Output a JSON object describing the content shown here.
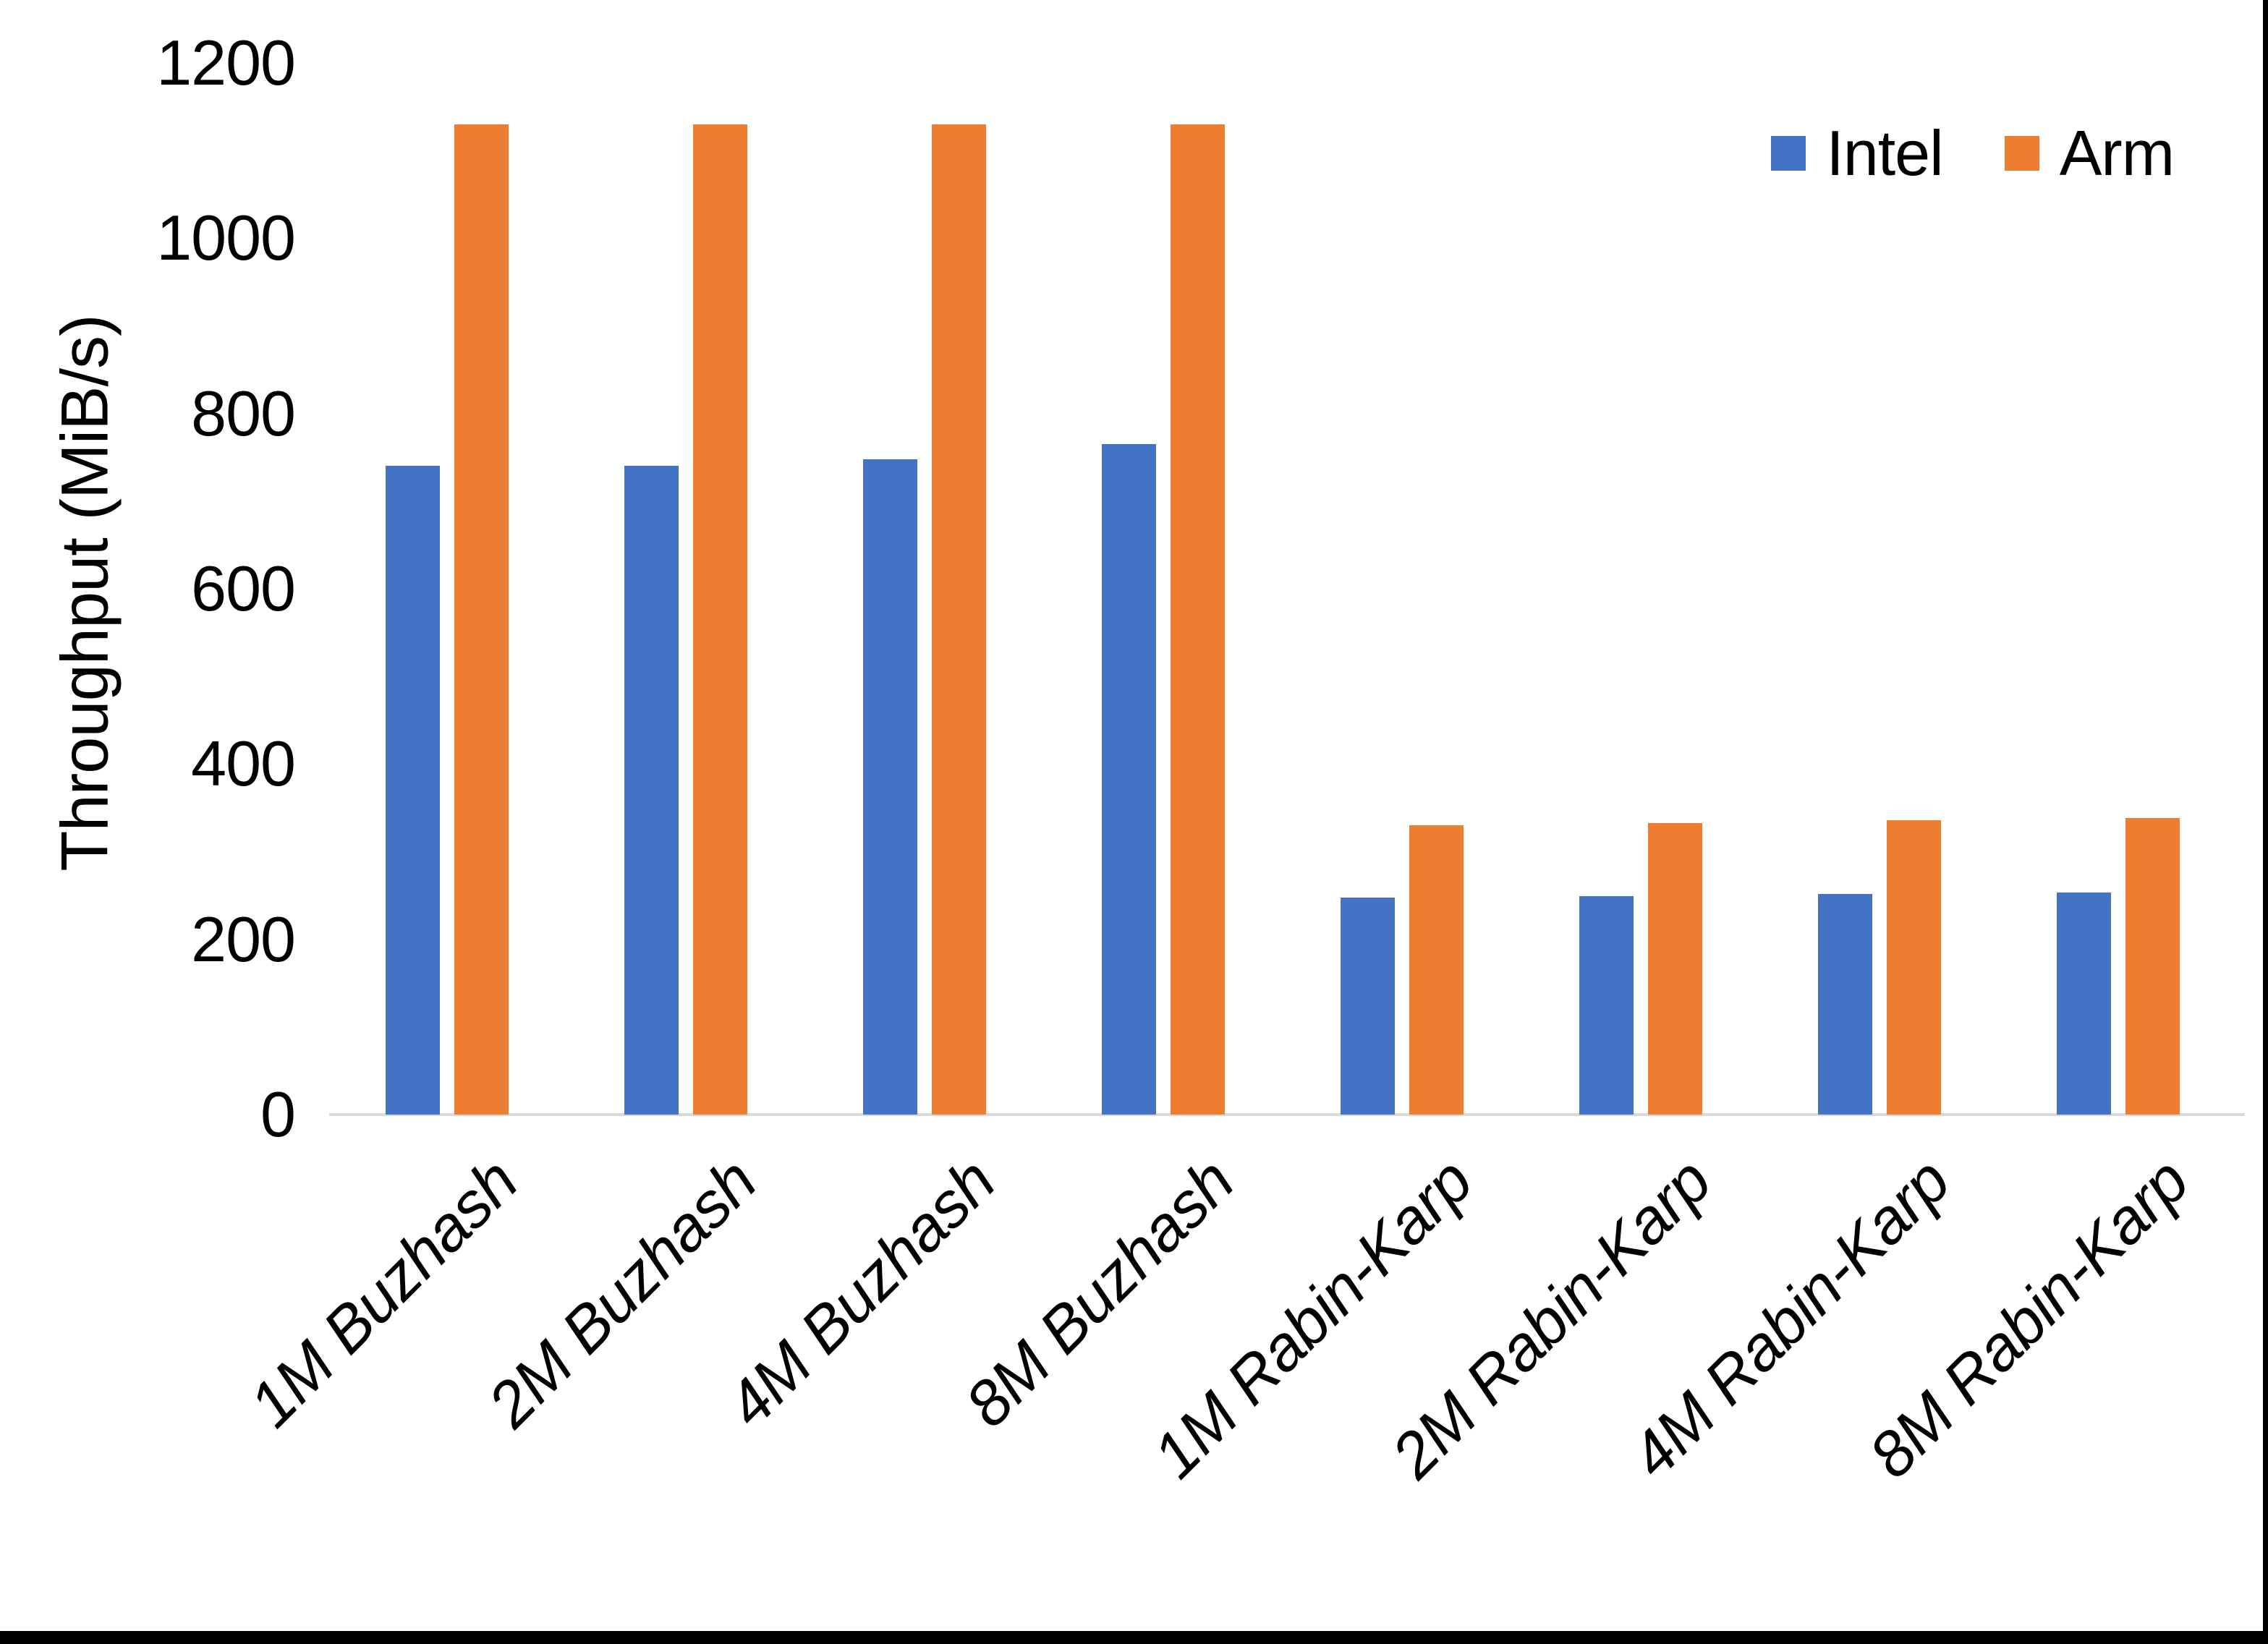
{
  "page": {
    "background_color": "#FFFFFF",
    "frame_color": "#000000"
  },
  "chart_data": {
    "type": "bar",
    "categories": [
      "1M Buzhash",
      "2M Buzhash",
      "4M Buzhash",
      "8M Buzhash",
      "1M Rabin-Karp",
      "2M Rabin-Karp",
      "4M Rabin-Karp",
      "8M Rabin-Karp"
    ],
    "series": [
      {
        "name": "Intel",
        "color": "#4472C4",
        "values": [
          740,
          740,
          748,
          765,
          248,
          249,
          252,
          253
        ]
      },
      {
        "name": "Arm",
        "color": "#ED7D31",
        "values": [
          1130,
          1130,
          1130,
          1130,
          330,
          333,
          336,
          338
        ]
      }
    ],
    "ylabel": "Throughput (MiB/s)",
    "xlabel": "",
    "ylim": [
      0,
      1200
    ],
    "yticks": [
      0,
      200,
      400,
      600,
      800,
      1000,
      1200
    ],
    "grid": false,
    "legend_position": "top-right",
    "axis_line_color": "#D9D9D9",
    "text_color": "#000000",
    "category_label_rotation_deg": -45,
    "category_label_style": "italic"
  }
}
